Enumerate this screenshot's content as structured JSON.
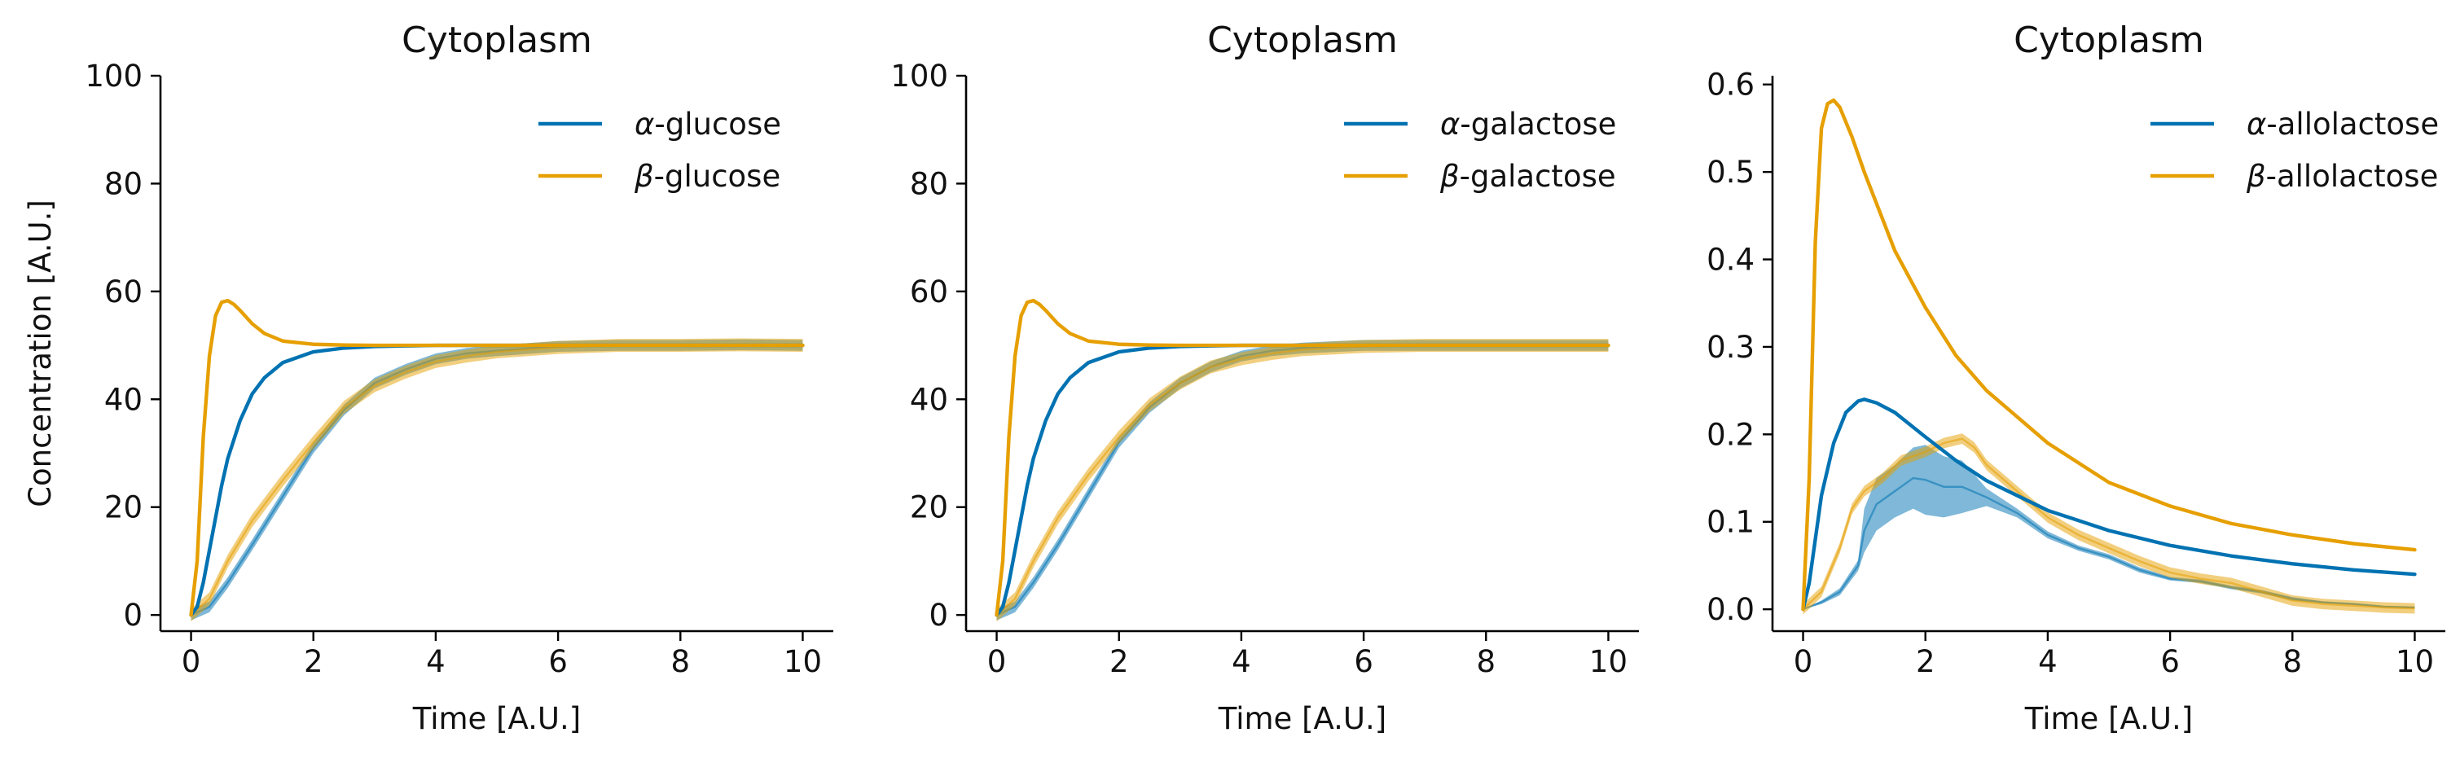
{
  "chart_data": [
    {
      "type": "line",
      "title": "Cytoplasm",
      "xlabel": "Time [A.U.]",
      "ylabel": "Concentration [A.U.]",
      "xlim": [
        -0.5,
        10.5
      ],
      "ylim": [
        -3,
        100
      ],
      "xticks": [
        0,
        2,
        4,
        6,
        8,
        10
      ],
      "yticks": [
        0,
        20,
        40,
        60,
        80,
        100
      ],
      "ytick_labels": [
        "0",
        "20",
        "40",
        "60",
        "80",
        "100"
      ],
      "legend_position": "top-right",
      "legend": [
        {
          "greek": "α",
          "rest": "-glucose",
          "color": "#0072B2"
        },
        {
          "greek": "β",
          "rest": "-glucose",
          "color": "#E69F00"
        }
      ],
      "series": [
        {
          "name": "α-glucose",
          "style": "model",
          "color": "#0072B2",
          "x": [
            0,
            0.1,
            0.2,
            0.3,
            0.4,
            0.5,
            0.6,
            0.8,
            1.0,
            1.2,
            1.5,
            2.0,
            2.5,
            3.0,
            3.5,
            4.0,
            5.0,
            6.0,
            8.0,
            10.0
          ],
          "y": [
            0,
            1.5,
            6,
            12,
            18,
            24,
            29,
            36,
            41,
            44,
            46.8,
            48.8,
            49.5,
            49.8,
            49.9,
            50,
            50,
            50,
            50,
            50
          ]
        },
        {
          "name": "β-glucose",
          "style": "model",
          "color": "#E69F00",
          "x": [
            0,
            0.1,
            0.2,
            0.3,
            0.4,
            0.5,
            0.6,
            0.7,
            0.8,
            1.0,
            1.2,
            1.5,
            2.0,
            2.5,
            3.0,
            4.0,
            6.0,
            10.0
          ],
          "y": [
            0,
            10,
            33,
            48,
            55.5,
            58,
            58.3,
            57.6,
            56.5,
            54,
            52.2,
            50.8,
            50.2,
            50.05,
            50,
            50,
            50,
            50
          ]
        },
        {
          "name": "α-glucose",
          "style": "stochastic",
          "color": "#0072B2",
          "band": 1.0,
          "x": [
            0,
            0.3,
            0.6,
            1.0,
            1.5,
            2.0,
            2.5,
            3.0,
            3.5,
            4.0,
            4.5,
            5.0,
            6.0,
            7.0,
            8.0,
            9.0,
            10.0
          ],
          "y": [
            0,
            1.5,
            6,
            13,
            22,
            31,
            38,
            43,
            45.5,
            47.5,
            48.5,
            49,
            49.8,
            50,
            50,
            50.1,
            50
          ]
        },
        {
          "name": "β-glucose",
          "style": "stochastic",
          "color": "#E69F00",
          "band": 1.2,
          "x": [
            0,
            0.3,
            0.6,
            1.0,
            1.5,
            2.0,
            2.5,
            3.0,
            3.5,
            4.0,
            4.5,
            5.0,
            6.0,
            7.0,
            8.0,
            9.0,
            10.0
          ],
          "y": [
            0,
            3,
            10,
            17.5,
            25,
            32,
            38.5,
            42.5,
            45,
            47,
            48,
            48.8,
            49.6,
            50,
            50,
            50.1,
            50
          ]
        }
      ]
    },
    {
      "type": "line",
      "title": "Cytoplasm",
      "xlabel": "Time [A.U.]",
      "ylabel": "",
      "xlim": [
        -0.5,
        10.5
      ],
      "ylim": [
        -3,
        100
      ],
      "xticks": [
        0,
        2,
        4,
        6,
        8,
        10
      ],
      "yticks": [
        0,
        20,
        40,
        60,
        80,
        100
      ],
      "ytick_labels": [
        "0",
        "20",
        "40",
        "60",
        "80",
        "100"
      ],
      "legend_position": "top-right",
      "legend": [
        {
          "greek": "α",
          "rest": "-galactose",
          "color": "#0072B2"
        },
        {
          "greek": "β",
          "rest": "-galactose",
          "color": "#E69F00"
        }
      ],
      "series": [
        {
          "name": "α-galactose",
          "style": "model",
          "color": "#0072B2",
          "x": [
            0,
            0.1,
            0.2,
            0.3,
            0.4,
            0.5,
            0.6,
            0.8,
            1.0,
            1.2,
            1.5,
            2.0,
            2.5,
            3.0,
            3.5,
            4.0,
            5.0,
            6.0,
            8.0,
            10.0
          ],
          "y": [
            0,
            1.5,
            6,
            12,
            18,
            24,
            29,
            36,
            41,
            44,
            46.8,
            48.8,
            49.5,
            49.8,
            49.9,
            50,
            50,
            50,
            50,
            50
          ]
        },
        {
          "name": "β-galactose",
          "style": "model",
          "color": "#E69F00",
          "x": [
            0,
            0.1,
            0.2,
            0.3,
            0.4,
            0.5,
            0.6,
            0.7,
            0.8,
            1.0,
            1.2,
            1.5,
            2.0,
            2.5,
            3.0,
            4.0,
            6.0,
            10.0
          ],
          "y": [
            0,
            10,
            33,
            48,
            55.5,
            58,
            58.3,
            57.6,
            56.5,
            54,
            52.2,
            50.8,
            50.2,
            50.05,
            50,
            50,
            50,
            50
          ]
        },
        {
          "name": "α-galactose",
          "style": "stochastic",
          "color": "#0072B2",
          "band": 1.0,
          "x": [
            0,
            0.3,
            0.6,
            1.0,
            1.5,
            2.0,
            2.5,
            3.0,
            3.5,
            4.0,
            4.5,
            5.0,
            6.0,
            7.0,
            8.0,
            9.0,
            10.0
          ],
          "y": [
            0,
            1.5,
            6,
            13,
            22.5,
            32,
            38.5,
            43,
            46,
            48,
            49,
            49.5,
            50,
            50,
            50,
            50,
            50
          ]
        },
        {
          "name": "β-galactose",
          "style": "stochastic",
          "color": "#E69F00",
          "band": 1.2,
          "x": [
            0,
            0.3,
            0.6,
            1.0,
            1.5,
            2.0,
            2.5,
            3.0,
            3.5,
            4.0,
            4.5,
            5.0,
            6.0,
            7.0,
            8.0,
            9.0,
            10.0
          ],
          "y": [
            0,
            3,
            10,
            18,
            26,
            33,
            39,
            43,
            46,
            47.5,
            48.5,
            49.2,
            49.8,
            50,
            50,
            50,
            50
          ]
        }
      ]
    },
    {
      "type": "line",
      "title": "Cytoplasm",
      "xlabel": "Time [A.U.]",
      "ylabel": "",
      "xlim": [
        -0.5,
        10.5
      ],
      "ylim": [
        -0.025,
        0.61
      ],
      "xticks": [
        0,
        2,
        4,
        6,
        8,
        10
      ],
      "yticks": [
        0,
        0.1,
        0.2,
        0.3,
        0.4,
        0.5,
        0.6
      ],
      "ytick_labels": [
        "0.0",
        "0.1",
        "0.2",
        "0.3",
        "0.4",
        "0.5",
        "0.6"
      ],
      "legend_position": "top-right",
      "legend": [
        {
          "greek": "α",
          "rest": "-allolactose",
          "color": "#0072B2"
        },
        {
          "greek": "β",
          "rest": "-allolactose",
          "color": "#E69F00"
        }
      ],
      "series": [
        {
          "name": "α-allolactose",
          "style": "model",
          "color": "#0072B2",
          "x": [
            0,
            0.1,
            0.2,
            0.3,
            0.5,
            0.7,
            0.9,
            1.0,
            1.2,
            1.5,
            2.0,
            2.5,
            3.0,
            4.0,
            5.0,
            6.0,
            7.0,
            8.0,
            9.0,
            10.0
          ],
          "y": [
            0,
            0.03,
            0.08,
            0.13,
            0.19,
            0.225,
            0.238,
            0.24,
            0.236,
            0.225,
            0.197,
            0.17,
            0.147,
            0.113,
            0.09,
            0.073,
            0.061,
            0.052,
            0.045,
            0.04
          ]
        },
        {
          "name": "β-allolactose",
          "style": "model",
          "color": "#E69F00",
          "x": [
            0,
            0.1,
            0.2,
            0.3,
            0.4,
            0.5,
            0.6,
            0.8,
            1.0,
            1.5,
            2.0,
            2.5,
            3.0,
            4.0,
            5.0,
            6.0,
            7.0,
            8.0,
            9.0,
            10.0
          ],
          "y": [
            0,
            0.15,
            0.42,
            0.55,
            0.578,
            0.582,
            0.574,
            0.54,
            0.5,
            0.41,
            0.345,
            0.29,
            0.25,
            0.19,
            0.145,
            0.118,
            0.098,
            0.085,
            0.075,
            0.068
          ]
        },
        {
          "name": "α-allolactose",
          "style": "stochastic",
          "color": "#0072B2",
          "x": [
            0,
            0.3,
            0.6,
            0.9,
            1.0,
            1.2,
            1.5,
            1.8,
            2.0,
            2.3,
            2.6,
            3.0,
            3.5,
            4.0,
            4.5,
            5.0,
            5.5,
            6.0,
            6.5,
            7.0,
            7.5,
            8.0,
            8.5,
            9.0,
            9.5,
            10.0
          ],
          "y": [
            0,
            0.008,
            0.02,
            0.05,
            0.09,
            0.12,
            0.135,
            0.15,
            0.148,
            0.14,
            0.14,
            0.128,
            0.11,
            0.085,
            0.07,
            0.06,
            0.045,
            0.035,
            0.032,
            0.025,
            0.02,
            0.012,
            0.008,
            0.006,
            0.003,
            0.002
          ],
          "band": [
            0,
            0.002,
            0.004,
            0.006,
            0.025,
            0.03,
            0.03,
            0.035,
            0.04,
            0.035,
            0.03,
            0.01,
            0.005,
            0.004,
            0.003,
            0.003,
            0.003,
            0.002,
            0.002,
            0.002,
            0.002,
            0.002,
            0.001,
            0.001,
            0.001,
            0.001
          ]
        },
        {
          "name": "β-allolactose",
          "style": "stochastic",
          "color": "#E69F00",
          "band": 0.006,
          "x": [
            0,
            0.3,
            0.6,
            0.8,
            1.0,
            1.3,
            1.6,
            2.0,
            2.3,
            2.6,
            2.8,
            3.0,
            3.5,
            4.0,
            4.5,
            5.0,
            5.5,
            6.0,
            6.5,
            7.0,
            7.5,
            8.0,
            8.5,
            9.0,
            9.5,
            10.0
          ],
          "y": [
            0,
            0.02,
            0.07,
            0.115,
            0.135,
            0.15,
            0.17,
            0.18,
            0.19,
            0.195,
            0.185,
            0.165,
            0.135,
            0.105,
            0.085,
            0.07,
            0.055,
            0.042,
            0.035,
            0.03,
            0.02,
            0.01,
            0.006,
            0.004,
            0.002,
            0.001
          ]
        }
      ]
    }
  ]
}
